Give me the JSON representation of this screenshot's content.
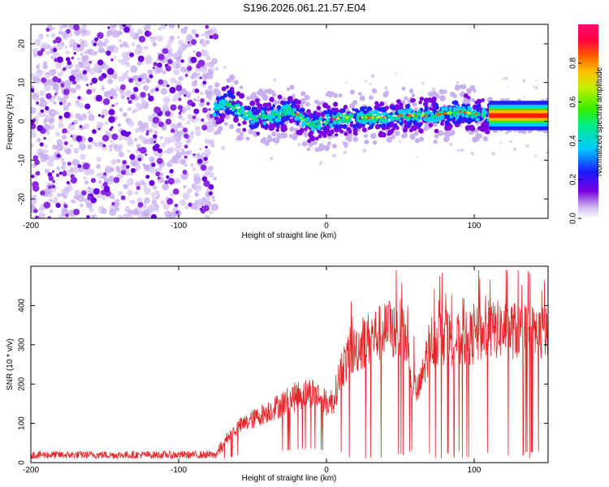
{
  "title": "S196.2026.061.21.57.E04",
  "chart_data": [
    {
      "type": "heatmap",
      "name": "spectrogram",
      "xlabel": "Height of straight line (km)",
      "ylabel": "Frequency (Hz)",
      "xlim": [
        -200,
        150
      ],
      "ylim": [
        -25,
        25
      ],
      "xticks": [
        -200,
        -100,
        0,
        100
      ],
      "yticks": [
        -20,
        -10,
        0,
        10,
        20
      ],
      "noise_region_x": [
        -200,
        -75
      ],
      "ridge": {
        "x": [
          -75,
          -70,
          -65,
          -60,
          -55,
          -50,
          -40,
          -30,
          -25,
          -20,
          -15,
          -10,
          0,
          10,
          20,
          30,
          40,
          50,
          60,
          70,
          80,
          90,
          100,
          110,
          120,
          130,
          140,
          150
        ],
        "freq": [
          3,
          4,
          5,
          3,
          2,
          1,
          1,
          2,
          3,
          2,
          0,
          -1,
          0,
          1,
          1,
          1,
          1,
          1.5,
          1.5,
          1.5,
          2,
          2.5,
          2,
          1.5,
          1.5,
          1.5,
          1.5,
          1.5
        ]
      },
      "colorbar": {
        "label": "Normalized spectral amplitude",
        "range": [
          0,
          1
        ],
        "ticks": [
          "0.0",
          "0.2",
          "0.4",
          "0.6",
          "0.8"
        ]
      }
    },
    {
      "type": "line",
      "name": "snr",
      "xlabel": "Height of straight line (km)",
      "ylabel": "SNR (10 * v/v)",
      "xlim": [
        -200,
        150
      ],
      "ylim": [
        0,
        500
      ],
      "xticks": [
        -200,
        -100,
        0,
        100
      ],
      "yticks": [
        0,
        100,
        200,
        300,
        400
      ],
      "color": "#e8262a",
      "envelope": {
        "x": [
          -200,
          -75,
          -68,
          -60,
          -50,
          -40,
          -30,
          -20,
          -10,
          -5,
          0,
          5,
          10,
          20,
          30,
          40,
          50,
          55,
          58,
          62,
          65,
          70,
          80,
          90,
          100,
          110,
          120,
          130,
          140,
          150
        ],
        "snr": [
          22,
          22,
          60,
          90,
          110,
          130,
          150,
          170,
          180,
          170,
          150,
          160,
          240,
          290,
          320,
          335,
          340,
          300,
          200,
          180,
          220,
          310,
          320,
          310,
          320,
          335,
          340,
          335,
          330,
          325
        ]
      }
    }
  ]
}
